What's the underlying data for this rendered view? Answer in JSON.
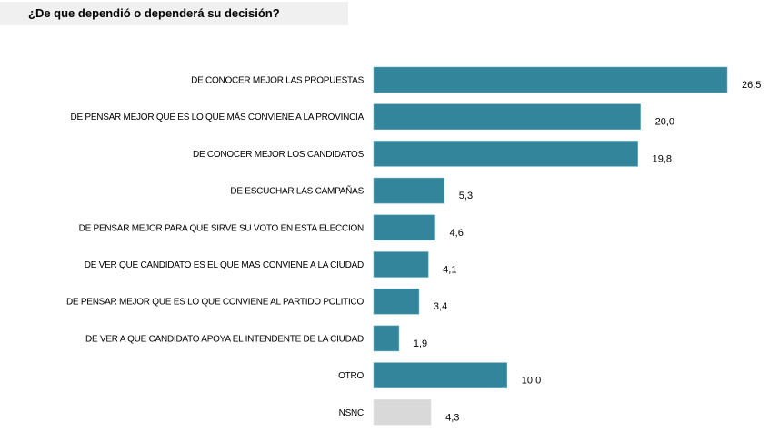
{
  "chart_data": {
    "type": "bar",
    "orientation": "horizontal",
    "title": "¿De que dependió o dependerá su decisión?",
    "xlabel": "",
    "ylabel": "",
    "grid": false,
    "legend": "none",
    "categories": [
      "DE CONOCER MEJOR LAS PROPUESTAS",
      "DE PENSAR MEJOR QUE ES LO QUE MÁS CONVIENE A LA PROVINCIA",
      "DE CONOCER MEJOR LOS CANDIDATOS",
      "DE ESCUCHAR LAS CAMPAÑAS",
      "DE PENSAR MEJOR PARA QUE SIRVE SU VOTO EN ESTA ELECCION",
      "DE VER QUE CANDIDATO ES EL QUE MAS CONVIENE A LA CIUDAD",
      "DE PENSAR MEJOR QUE ES LO QUE CONVIENE AL PARTIDO POLITICO",
      "DE VER A QUE CANDIDATO APOYA EL INTENDENTE DE LA CIUDAD",
      "OTRO",
      "NSNC"
    ],
    "values": [
      26.5,
      20.0,
      19.8,
      5.3,
      4.6,
      4.1,
      3.4,
      1.9,
      10.0,
      4.3
    ],
    "value_labels": [
      "26,5",
      "20,0",
      "19,8",
      "5,3",
      "4,6",
      "4,1",
      "3,4",
      "1,9",
      "10,0",
      "4,3"
    ],
    "colors": [
      "#32859a",
      "#32859a",
      "#32859a",
      "#32859a",
      "#32859a",
      "#32859a",
      "#32859a",
      "#32859a",
      "#32859a",
      "#d9d9d9"
    ],
    "xlim": [
      0,
      26.5
    ]
  }
}
